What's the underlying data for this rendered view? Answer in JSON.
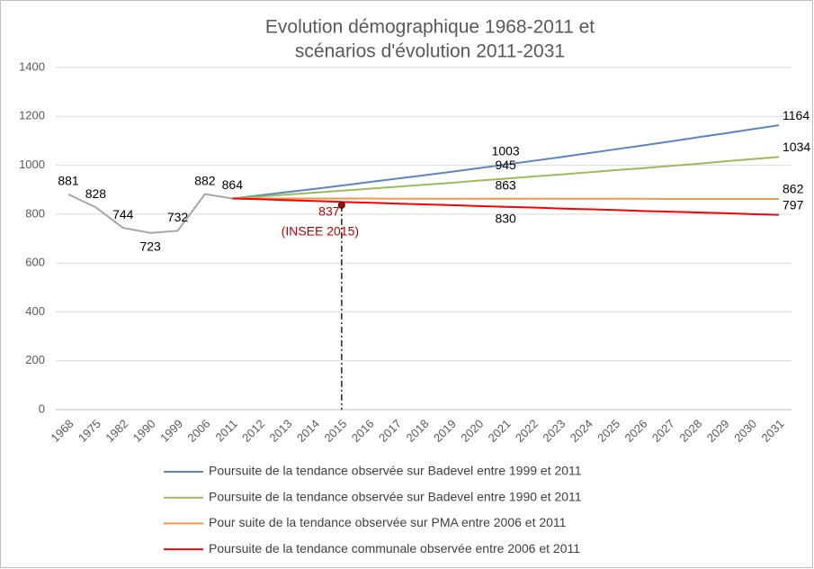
{
  "chart_data": {
    "type": "line",
    "title": [
      "Evolution démographique 1968-2011 et",
      "scénarios d'évolution 2011-2031"
    ],
    "categories": [
      "1968",
      "1975",
      "1982",
      "1990",
      "1999",
      "2006",
      "2011",
      "2012",
      "2013",
      "2014",
      "2015",
      "2016",
      "2017",
      "2018",
      "2019",
      "2020",
      "2021",
      "2022",
      "2023",
      "2024",
      "2025",
      "2026",
      "2027",
      "2028",
      "2029",
      "2030",
      "2031"
    ],
    "ylim": [
      0,
      1400
    ],
    "yticks": [
      0,
      200,
      400,
      600,
      800,
      1000,
      1200,
      1400
    ],
    "grid": true,
    "legend": "bottom",
    "series": [
      {
        "color": "#a6a6a6",
        "values": [
          881,
          828,
          744,
          723,
          732,
          882,
          864,
          null,
          null,
          null,
          null,
          null,
          null,
          null,
          null,
          null,
          null,
          null,
          null,
          null,
          null,
          null,
          null,
          null,
          null,
          null,
          null
        ],
        "value_labels": [
          "881",
          "828",
          "744",
          "723",
          "732",
          "882",
          "864",
          null,
          null,
          null,
          null,
          null,
          null,
          null,
          null,
          null,
          null,
          null,
          null,
          null,
          null,
          null,
          null,
          null,
          null,
          null,
          null
        ]
      },
      {
        "name": "Poursuite de la tendance observée sur Badevel entre 1999 et 2011",
        "color": "#5b84c4",
        "label_position": "above",
        "values": [
          null,
          null,
          null,
          null,
          null,
          null,
          864,
          877,
          890,
          903,
          917,
          931,
          945,
          959,
          973,
          988,
          1003,
          1018,
          1033,
          1049,
          1065,
          1081,
          1097,
          1114,
          1130,
          1147,
          1164
        ],
        "value_labels": [
          null,
          null,
          null,
          null,
          null,
          null,
          null,
          null,
          null,
          null,
          null,
          null,
          null,
          null,
          null,
          null,
          "1003",
          null,
          null,
          null,
          null,
          null,
          null,
          null,
          null,
          null,
          "1164"
        ]
      },
      {
        "name": "Poursuite de la tendance observée sur Badevel entre 1990 et 2011",
        "color": "#9bbb59",
        "label_position": "above",
        "values": [
          null,
          null,
          null,
          null,
          null,
          null,
          864,
          872,
          880,
          888,
          896,
          904,
          912,
          920,
          928,
          937,
          945,
          954,
          962,
          971,
          980,
          988,
          997,
          1006,
          1016,
          1025,
          1034
        ],
        "value_labels": [
          null,
          null,
          null,
          null,
          null,
          null,
          null,
          null,
          null,
          null,
          null,
          null,
          null,
          null,
          null,
          null,
          "945",
          null,
          null,
          null,
          null,
          null,
          null,
          null,
          null,
          null,
          "1034"
        ]
      },
      {
        "name": "Pour suite de la tendance observée sur PMA entre 2006 et 2011",
        "color": "#f79646",
        "label_position": "above",
        "values": [
          null,
          null,
          null,
          null,
          null,
          null,
          864,
          864,
          864,
          864,
          864,
          864,
          863,
          863,
          863,
          863,
          863,
          863,
          863,
          863,
          863,
          863,
          862,
          862,
          862,
          862,
          862
        ],
        "value_labels": [
          null,
          null,
          null,
          null,
          null,
          null,
          null,
          null,
          null,
          null,
          null,
          null,
          null,
          null,
          null,
          null,
          "863",
          null,
          null,
          null,
          null,
          null,
          null,
          null,
          null,
          null,
          "862"
        ]
      },
      {
        "name": "Poursuite de la tendance communale observée entre 2006 et 2011",
        "color": "#ff0000",
        "label_position": "below",
        "values": [
          null,
          null,
          null,
          null,
          null,
          null,
          864,
          861,
          857,
          854,
          850,
          847,
          843,
          840,
          837,
          833,
          830,
          827,
          823,
          820,
          817,
          813,
          810,
          807,
          804,
          800,
          797
        ],
        "value_labels": [
          null,
          null,
          null,
          null,
          null,
          null,
          null,
          null,
          null,
          null,
          null,
          null,
          null,
          null,
          null,
          null,
          "830",
          null,
          null,
          null,
          null,
          null,
          null,
          null,
          null,
          null,
          "797"
        ]
      }
    ],
    "annotation": {
      "x": "2015",
      "value": 837,
      "label": "(INSEE 2015)",
      "color": "#c00000"
    }
  }
}
